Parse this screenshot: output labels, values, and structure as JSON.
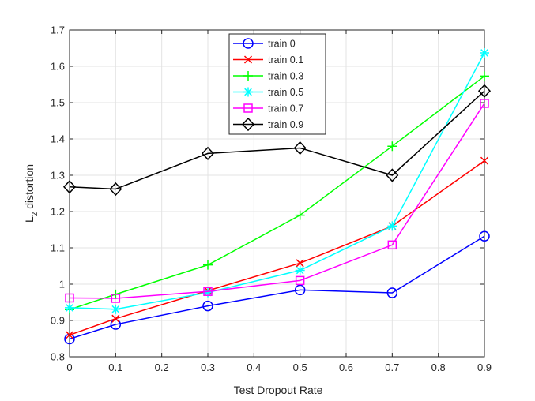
{
  "chart_data": {
    "type": "line",
    "title": "",
    "xlabel": "Test Dropout Rate",
    "ylabel": "L",
    "ylabel_subscript": "2",
    "ylabel_suffix": " distortion",
    "xlim": [
      0,
      0.9
    ],
    "ylim": [
      0.8,
      1.7
    ],
    "xticks": [
      0,
      0.1,
      0.2,
      0.3,
      0.4,
      0.5,
      0.6,
      0.7,
      0.8,
      0.9
    ],
    "xtick_labels": [
      "0",
      "0.1",
      "0.2",
      "0.3",
      "0.4",
      "0.5",
      "0.6",
      "0.7",
      "0.8",
      "0.9"
    ],
    "yticks": [
      0.8,
      0.9,
      1.0,
      1.1,
      1.2,
      1.3,
      1.4,
      1.5,
      1.6,
      1.7
    ],
    "ytick_labels": [
      "0.8",
      "0.9",
      "1",
      "1.1",
      "1.2",
      "1.3",
      "1.4",
      "1.5",
      "1.6",
      "1.7"
    ],
    "grid": true,
    "legend_position": "top-center",
    "x": [
      0,
      0.1,
      0.3,
      0.5,
      0.7,
      0.9
    ],
    "series": [
      {
        "name": "train 0",
        "color": "#0000ff",
        "marker": "circle",
        "values": [
          0.849,
          0.889,
          0.94,
          0.984,
          0.976,
          1.132
        ]
      },
      {
        "name": "train 0.1",
        "color": "#ff0000",
        "marker": "x",
        "values": [
          0.86,
          0.905,
          0.982,
          1.058,
          1.16,
          1.34
        ]
      },
      {
        "name": "train 0.3",
        "color": "#00ff00",
        "marker": "plus",
        "values": [
          0.93,
          0.972,
          1.053,
          1.19,
          1.38,
          1.573
        ]
      },
      {
        "name": "train 0.5",
        "color": "#00ffff",
        "marker": "asterisk",
        "values": [
          0.935,
          0.931,
          0.977,
          1.038,
          1.16,
          1.637
        ]
      },
      {
        "name": "train 0.7",
        "color": "#ff00ff",
        "marker": "square",
        "values": [
          0.962,
          0.961,
          0.98,
          1.01,
          1.108,
          1.498
        ]
      },
      {
        "name": "train 0.9",
        "color": "#000000",
        "marker": "diamond",
        "values": [
          1.268,
          1.262,
          1.36,
          1.375,
          1.3,
          1.532
        ]
      }
    ]
  }
}
